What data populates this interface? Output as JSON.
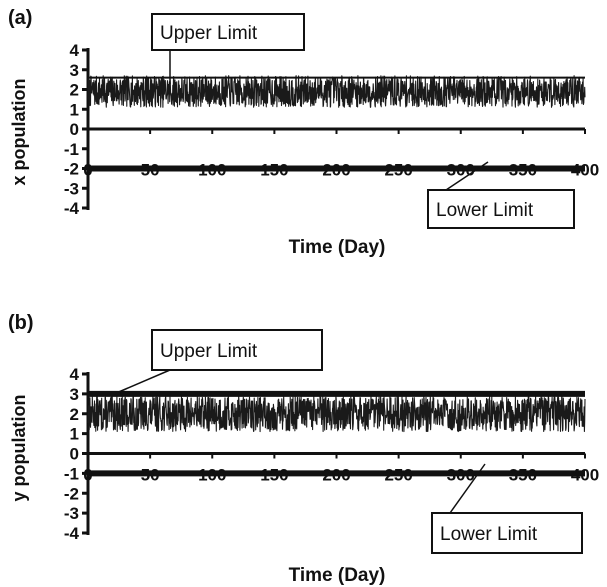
{
  "chart_data": [
    {
      "panel": "(a)",
      "type": "line",
      "xlabel": "Time (Day)",
      "ylabel": "x population",
      "xlim": [
        0,
        400
      ],
      "ylim": [
        -4,
        4
      ],
      "xticks": [
        0,
        50,
        100,
        150,
        200,
        250,
        300,
        350,
        400
      ],
      "yticks": [
        4,
        3,
        2,
        1,
        0,
        -1,
        -2,
        -3,
        -4
      ],
      "series": [
        {
          "role": "fluctuation",
          "x": [
            0,
            400
          ],
          "y_range": [
            1.1,
            2.7
          ]
        },
        {
          "role": "upper",
          "x": [
            0,
            400
          ],
          "y": [
            2.6,
            2.6
          ]
        },
        {
          "role": "lower",
          "x": [
            0,
            400
          ],
          "y": [
            -2,
            -2
          ]
        }
      ],
      "annotations": [
        {
          "text": "Upper Limit",
          "points_to": "upper"
        },
        {
          "text": "Lower Limit",
          "points_to": "lower"
        }
      ]
    },
    {
      "panel": "(b)",
      "type": "line",
      "xlabel": "Time (Day)",
      "ylabel": "y population",
      "xlim": [
        0,
        400
      ],
      "ylim": [
        -4,
        4
      ],
      "xticks": [
        0,
        50,
        100,
        150,
        200,
        250,
        300,
        350,
        400
      ],
      "yticks": [
        4,
        3,
        2,
        1,
        0,
        -1,
        -2,
        -3,
        -4
      ],
      "series": [
        {
          "role": "fluctuation",
          "x": [
            0,
            400
          ],
          "y_range": [
            1.1,
            2.9
          ]
        },
        {
          "role": "upper",
          "x": [
            0,
            400
          ],
          "y": [
            3,
            3
          ]
        },
        {
          "role": "lower",
          "x": [
            0,
            400
          ],
          "y": [
            -1,
            -1
          ]
        }
      ],
      "annotations": [
        {
          "text": "Upper Limit",
          "points_to": "upper"
        },
        {
          "text": "Lower Limit",
          "points_to": "lower"
        }
      ]
    }
  ]
}
